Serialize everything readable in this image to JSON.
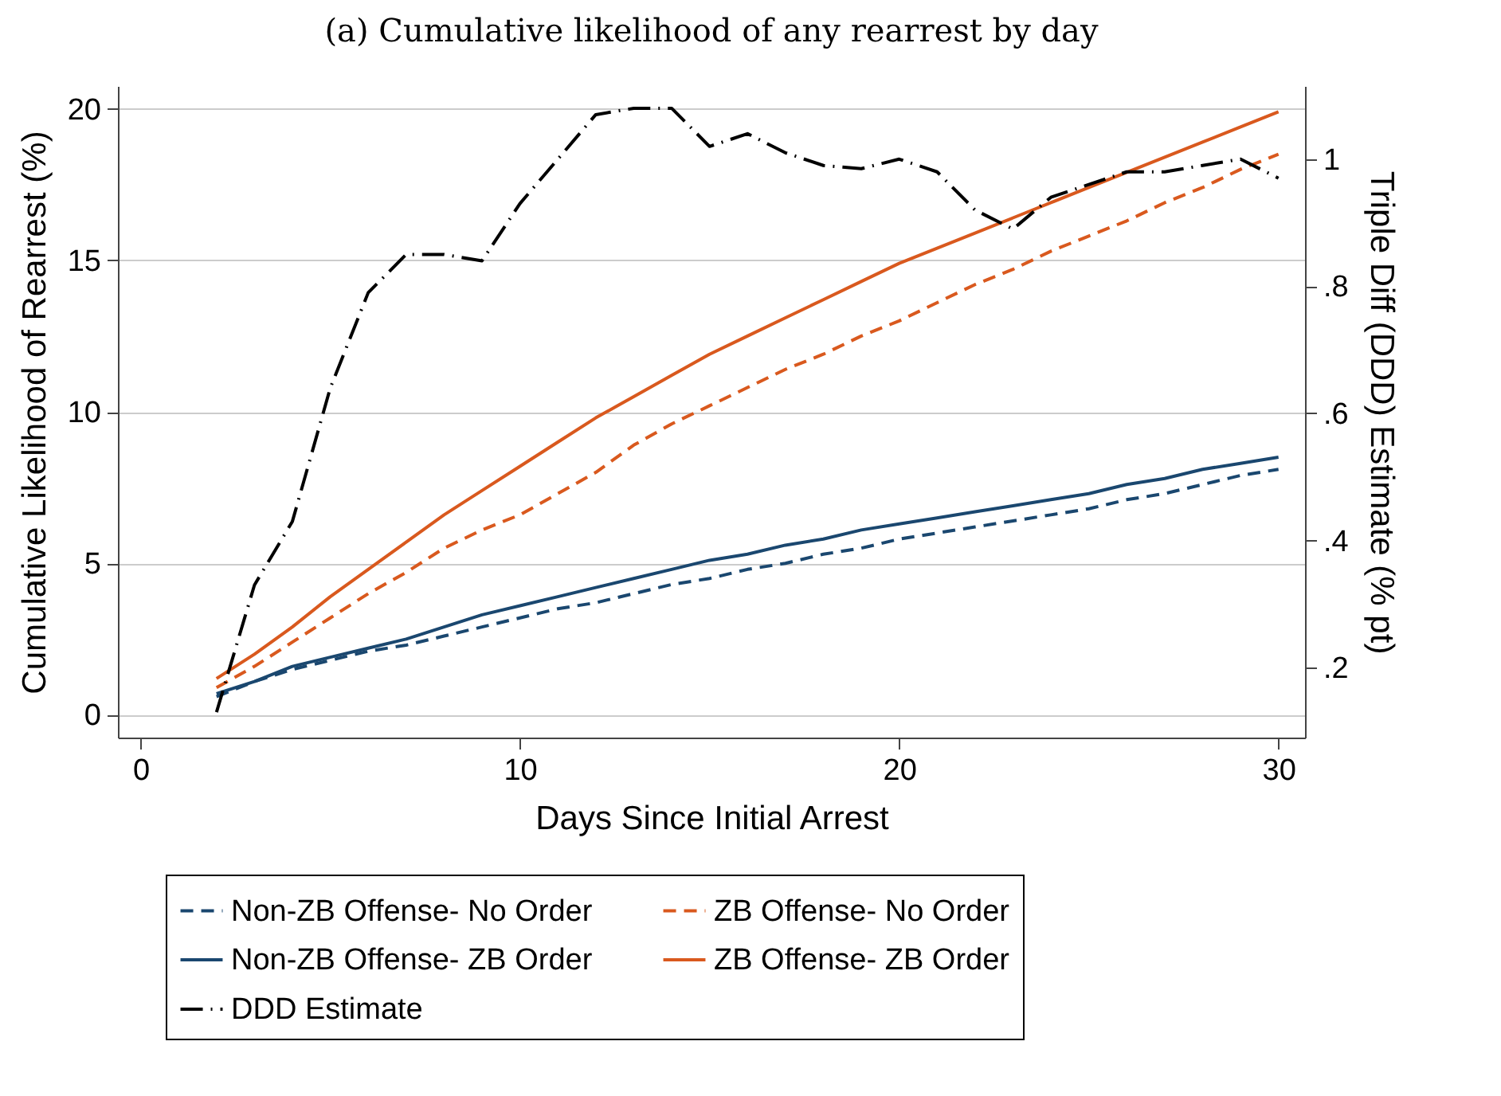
{
  "chart_data": {
    "type": "line",
    "title": "(a) Cumulative likelihood of any rearrest by day",
    "xlabel": "Days Since Initial Arrest",
    "ylabel": "Cumulative Likelihood of Rearrest (%)",
    "y2label": "Triple Diff (DDD) Estimate (% pt)",
    "x": [
      2,
      3,
      4,
      5,
      6,
      7,
      8,
      9,
      10,
      11,
      12,
      13,
      14,
      15,
      16,
      17,
      18,
      19,
      20,
      21,
      22,
      23,
      24,
      25,
      26,
      27,
      28,
      29,
      30
    ],
    "xlim": [
      -0.6,
      30.7
    ],
    "xticks": [
      0,
      10,
      20,
      30
    ],
    "ylim": [
      -0.75,
      20.75
    ],
    "yticks": [
      0,
      5,
      10,
      15,
      20
    ],
    "y2lim": [
      0.09,
      1.115
    ],
    "y2ticks": [
      {
        "value": 0.2,
        "label": ".2"
      },
      {
        "value": 0.4,
        "label": ".4"
      },
      {
        "value": 0.6,
        "label": ".6"
      },
      {
        "value": 0.8,
        "label": ".8"
      },
      {
        "value": 1,
        "label": "1"
      }
    ],
    "grid": "y",
    "legend": "bottom",
    "marker": "none",
    "series": [
      {
        "name": "Non-ZB Offense- No Order",
        "color": "#1a476f",
        "line_style": "dashed",
        "values": [
          0.6,
          1.1,
          1.5,
          1.8,
          2.1,
          2.3,
          2.6,
          2.9,
          3.2,
          3.5,
          3.7,
          4.0,
          4.3,
          4.5,
          4.8,
          5.0,
          5.3,
          5.5,
          5.8,
          6.0,
          6.2,
          6.4,
          6.6,
          6.8,
          7.1,
          7.3,
          7.6,
          7.9,
          8.1
        ]
      },
      {
        "name": "ZB Offense- No Order",
        "color": "#d9591e",
        "line_style": "dashed",
        "values": [
          0.9,
          1.6,
          2.4,
          3.2,
          4.0,
          4.7,
          5.5,
          6.1,
          6.6,
          7.3,
          8.0,
          8.9,
          9.6,
          10.2,
          10.8,
          11.4,
          11.9,
          12.5,
          13.0,
          13.6,
          14.2,
          14.7,
          15.3,
          15.8,
          16.3,
          16.9,
          17.4,
          18.0,
          18.5
        ]
      },
      {
        "name": "Non-ZB Offense- ZB Order",
        "color": "#1a476f",
        "line_style": "solid",
        "values": [
          0.7,
          1.1,
          1.6,
          1.9,
          2.2,
          2.5,
          2.9,
          3.3,
          3.6,
          3.9,
          4.2,
          4.5,
          4.8,
          5.1,
          5.3,
          5.6,
          5.8,
          6.1,
          6.3,
          6.5,
          6.7,
          6.9,
          7.1,
          7.3,
          7.6,
          7.8,
          8.1,
          8.3,
          8.5
        ]
      },
      {
        "name": "ZB Offense- ZB Order",
        "color": "#d9591e",
        "line_style": "solid",
        "values": [
          1.2,
          2.0,
          2.9,
          3.9,
          4.8,
          5.7,
          6.6,
          7.4,
          8.2,
          9.0,
          9.8,
          10.5,
          11.2,
          11.9,
          12.5,
          13.1,
          13.7,
          14.3,
          14.9,
          15.4,
          15.9,
          16.4,
          16.9,
          17.4,
          17.9,
          18.4,
          18.9,
          19.4,
          19.9
        ]
      },
      {
        "name": "DDD Estimate",
        "color": "#000000",
        "line_style": "dashdot",
        "axis": "y2",
        "values": [
          0.13,
          0.33,
          0.43,
          0.64,
          0.79,
          0.85,
          0.85,
          0.84,
          0.93,
          1.0,
          1.07,
          1.08,
          1.08,
          1.02,
          1.04,
          1.01,
          0.99,
          0.985,
          1.0,
          0.98,
          0.92,
          0.89,
          0.94,
          0.96,
          0.98,
          0.98,
          0.99,
          1.0,
          0.97
        ]
      }
    ]
  }
}
